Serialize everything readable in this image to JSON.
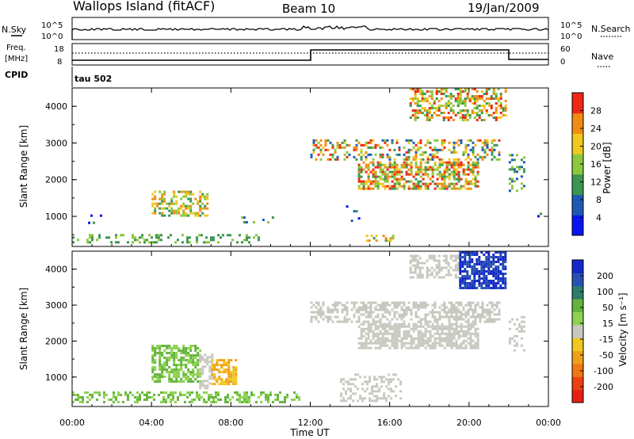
{
  "header": {
    "title": "Wallops Island (fitACF)",
    "beam": "Beam 10",
    "date": "19/Jan/2009"
  },
  "noise_panel": {
    "left_label": "N.Sky",
    "right_label": "N.Search",
    "y_top_label": "10^5",
    "y_bottom_label": "10^0"
  },
  "freq_panel": {
    "left_label_1": "Freq.",
    "left_label_2": "[MHz]",
    "left_tick_top": "18",
    "left_tick_bottom": "8",
    "right_label": "Nave",
    "right_tick_top": "60",
    "right_tick_bottom": "0"
  },
  "cpid_panel": {
    "label": "CPID",
    "value": "tau 502"
  },
  "chart_data": [
    {
      "type": "heatmap",
      "quantity": "Power",
      "ylabel": "Slant Range [km]",
      "ylim": [
        180,
        4500
      ],
      "y_ticks": [
        1000,
        2000,
        3000,
        4000
      ],
      "y_tick_labels": [
        "1000",
        "2000",
        "3000",
        "4000"
      ],
      "xlim_hours": [
        0,
        24
      ],
      "colorbar": {
        "label": "Power [dB]",
        "ticks": [
          "4",
          "8",
          "12",
          "16",
          "20",
          "24",
          "28"
        ],
        "colors": [
          "#0a14f0",
          "#1e5ab4",
          "#3c9650",
          "#8cc83c",
          "#f0c81e",
          "#f08c14",
          "#ee2814"
        ]
      },
      "regions": [
        {
          "t0": 0.0,
          "t1": 9.5,
          "r0": 300,
          "r1": 520,
          "c": [
            0.35,
            0.5,
            0.3
          ]
        },
        {
          "t0": 0.8,
          "t1": 1.5,
          "r0": 850,
          "r1": 1050,
          "c": [
            0.05,
            0.3,
            0.1
          ]
        },
        {
          "t0": 4.0,
          "t1": 6.8,
          "r0": 1000,
          "r1": 1700,
          "c": [
            0.4,
            0.75,
            0.5
          ]
        },
        {
          "t0": 8.5,
          "t1": 10.2,
          "r0": 850,
          "r1": 1000,
          "c": [
            0.2,
            0.45,
            0.2
          ]
        },
        {
          "t0": 12.0,
          "t1": 21.5,
          "r0": 2550,
          "r1": 3100,
          "c": [
            0.25,
            0.85,
            0.4
          ]
        },
        {
          "t0": 14.4,
          "t1": 20.5,
          "r0": 1750,
          "r1": 2500,
          "c": [
            0.35,
            0.95,
            0.6
          ]
        },
        {
          "t0": 17.0,
          "t1": 21.8,
          "r0": 3600,
          "r1": 4500,
          "c": [
            0.35,
            0.85,
            0.45
          ]
        },
        {
          "t0": 13.8,
          "t1": 14.8,
          "r0": 900,
          "r1": 1300,
          "c": [
            0.05,
            0.35,
            0.1
          ]
        },
        {
          "t0": 14.8,
          "t1": 16.2,
          "r0": 350,
          "r1": 500,
          "c": [
            0.4,
            0.7,
            0.3
          ]
        },
        {
          "t0": 22.0,
          "t1": 22.8,
          "r0": 1700,
          "r1": 2700,
          "c": [
            0.2,
            0.5,
            0.3
          ]
        },
        {
          "t0": 23.2,
          "t1": 23.8,
          "r0": 900,
          "r1": 1100,
          "c": [
            0.0,
            0.2,
            0.1
          ]
        }
      ]
    },
    {
      "type": "heatmap",
      "quantity": "Velocity",
      "ylabel": "Slant Range [km]",
      "xlabel": "Time UT",
      "ylim": [
        180,
        4500
      ],
      "y_ticks": [
        1000,
        2000,
        3000,
        4000
      ],
      "y_tick_labels": [
        "1000",
        "2000",
        "3000",
        "4000"
      ],
      "x_tick_labels": [
        "00:00",
        "04:00",
        "08:00",
        "12:00",
        "16:00",
        "20:00",
        "00:00"
      ],
      "xlim_hours": [
        0,
        24
      ],
      "colorbar": {
        "label": "Velocity [m s⁻¹]",
        "ticks": [
          "200",
          "100",
          "50",
          "15",
          "-15",
          "-50",
          "-100",
          "-200"
        ],
        "colors": [
          "#1428c8",
          "#2850b4",
          "#2c7c6c",
          "#64b43c",
          "#8cd250",
          "#c8c8c0",
          "#f0c820",
          "#f0a018",
          "#f07814",
          "#ee4010",
          "#e81e10"
        ]
      },
      "regions": [
        {
          "t0": 0.0,
          "t1": 11.5,
          "r0": 300,
          "r1": 600,
          "c": [
            3,
            4,
            0.45
          ]
        },
        {
          "t0": 4.0,
          "t1": 6.4,
          "r0": 900,
          "r1": 1900,
          "c": [
            3,
            4,
            0.65
          ]
        },
        {
          "t0": 6.4,
          "t1": 7.0,
          "r0": 700,
          "r1": 1650,
          "c": [
            5,
            5,
            0.55
          ]
        },
        {
          "t0": 7.0,
          "t1": 8.2,
          "r0": 800,
          "r1": 1500,
          "c": [
            6,
            7,
            0.6
          ]
        },
        {
          "t0": 12.0,
          "t1": 21.5,
          "r0": 2550,
          "r1": 3100,
          "c": [
            5,
            5,
            0.55
          ]
        },
        {
          "t0": 14.4,
          "t1": 20.5,
          "r0": 1800,
          "r1": 2500,
          "c": [
            5,
            5,
            0.7
          ]
        },
        {
          "t0": 17.0,
          "t1": 19.5,
          "r0": 3800,
          "r1": 4400,
          "c": [
            5,
            5,
            0.5
          ]
        },
        {
          "t0": 19.5,
          "t1": 21.8,
          "r0": 3500,
          "r1": 4500,
          "c": [
            0,
            1,
            0.75
          ]
        },
        {
          "t0": 13.5,
          "t1": 16.5,
          "r0": 350,
          "r1": 1100,
          "c": [
            5,
            5,
            0.3
          ]
        },
        {
          "t0": 22.0,
          "t1": 22.8,
          "r0": 1750,
          "r1": 2700,
          "c": [
            5,
            5,
            0.3
          ]
        },
        {
          "t0": 23.2,
          "t1": 23.8,
          "r0": 900,
          "r1": 1200,
          "c": [
            3,
            4,
            0.2
          ]
        }
      ]
    }
  ]
}
